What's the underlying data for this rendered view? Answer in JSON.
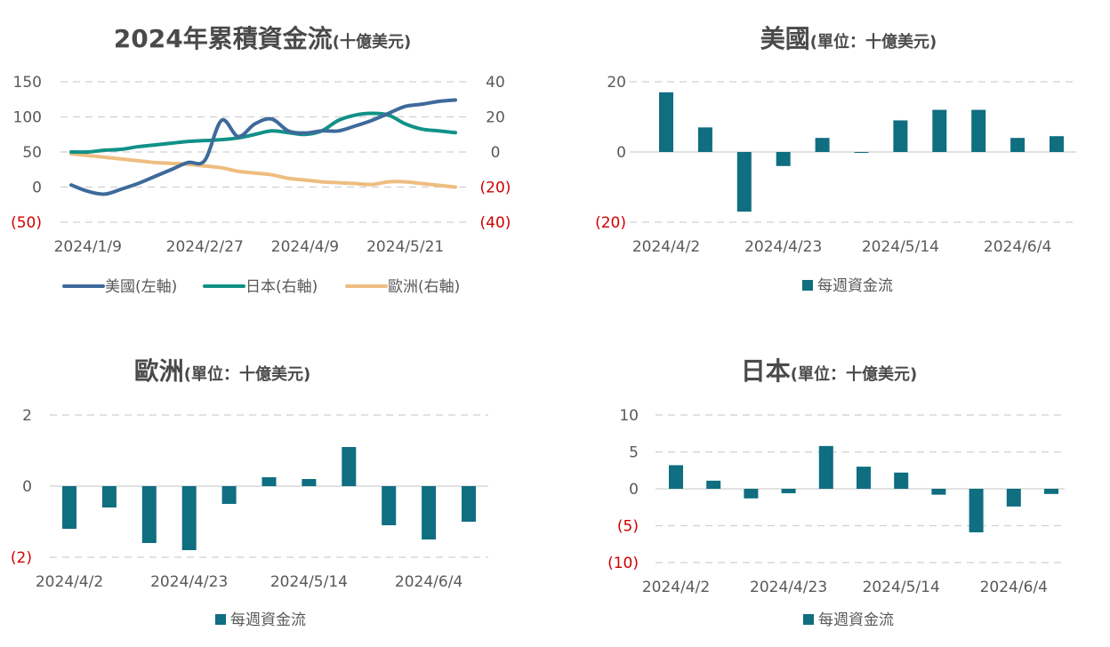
{
  "colors": {
    "us": "#3e6a9b",
    "jp": "#119187",
    "eu": "#eebd80",
    "bar": "#0f6e80",
    "neg": "#d00000",
    "grid": "#d0d0d0",
    "text": "#595959"
  },
  "charts": {
    "cumulative": {
      "title_main": "2024年累積資金流",
      "title_sub": "(十億美元)",
      "left_ticks": [
        "150",
        "100",
        "50",
        "0",
        "(50)"
      ],
      "right_ticks": [
        "40",
        "20",
        "0",
        "(20)",
        "(40)"
      ],
      "x_ticks": [
        "2024/1/9",
        "2024/2/27",
        "2024/4/9",
        "2024/5/21"
      ],
      "legend": [
        "美國(左軸)",
        "日本(右軸)",
        "歐洲(右軸)"
      ]
    },
    "us": {
      "title_main": "美國",
      "title_sub": "(單位：十億美元)",
      "y_ticks": [
        "20",
        "0",
        "(20)"
      ],
      "x_ticks": [
        "2024/4/2",
        "2024/4/23",
        "2024/5/14",
        "2024/6/4"
      ],
      "legend": "每週資金流"
    },
    "eu": {
      "title_main": "歐洲",
      "title_sub": "(單位：十億美元)",
      "y_ticks": [
        "2",
        "0",
        "(2)"
      ],
      "x_ticks": [
        "2024/4/2",
        "2024/4/23",
        "2024/5/14",
        "2024/6/4"
      ],
      "legend": "每週資金流"
    },
    "jp": {
      "title_main": "日本",
      "title_sub": "(單位：十億美元)",
      "y_ticks": [
        "10",
        "5",
        "0",
        "(5)",
        "(10)"
      ],
      "x_ticks": [
        "2024/4/2",
        "2024/4/23",
        "2024/5/14",
        "2024/6/4"
      ],
      "legend": "每週資金流"
    }
  },
  "chart_data": [
    {
      "type": "line",
      "title": "2024年累積資金流(十億美元)",
      "x": [
        "2024/1/2",
        "2024/1/9",
        "2024/1/16",
        "2024/1/23",
        "2024/1/30",
        "2024/2/6",
        "2024/2/13",
        "2024/2/20",
        "2024/2/27",
        "2024/3/5",
        "2024/3/12",
        "2024/3/19",
        "2024/3/26",
        "2024/4/2",
        "2024/4/9",
        "2024/4/16",
        "2024/4/23",
        "2024/4/30",
        "2024/5/7",
        "2024/5/14",
        "2024/5/21",
        "2024/5/28",
        "2024/6/4",
        "2024/6/11"
      ],
      "x_ticks": [
        "2024/1/9",
        "2024/2/27",
        "2024/4/9",
        "2024/5/21"
      ],
      "ylim_left": [
        -50,
        150
      ],
      "ylim_right": [
        -40,
        40
      ],
      "grid": true,
      "legend_position": "bottom",
      "series": [
        {
          "name": "美國(左軸)",
          "axis": "left",
          "values": [
            3,
            -6,
            -10,
            -3,
            5,
            15,
            25,
            35,
            38,
            95,
            72,
            90,
            97,
            80,
            77,
            80,
            80,
            87,
            95,
            105,
            115,
            118,
            122,
            124
          ]
        },
        {
          "name": "日本(右軸)",
          "axis": "right",
          "values": [
            0,
            0,
            1,
            1.5,
            3,
            4,
            5,
            6,
            6.5,
            7,
            8,
            10,
            12,
            11,
            10,
            12,
            18,
            21,
            22,
            21,
            16,
            13,
            12,
            11
          ]
        },
        {
          "name": "歐洲(右軸)",
          "axis": "right",
          "values": [
            -1,
            -2,
            -3,
            -4,
            -5,
            -6,
            -6.5,
            -7,
            -8,
            -9,
            -11,
            -12,
            -13,
            -15,
            -16,
            -17,
            -17.5,
            -18,
            -18.5,
            -17,
            -17,
            -18,
            -19,
            -20
          ]
        }
      ]
    },
    {
      "type": "bar",
      "title": "美國(單位：十億美元)",
      "categories": [
        "2024/4/2",
        "2024/4/9",
        "2024/4/16",
        "2024/4/23",
        "2024/4/30",
        "2024/5/7",
        "2024/5/14",
        "2024/5/21",
        "2024/5/28",
        "2024/6/4",
        "2024/6/11"
      ],
      "series": [
        {
          "name": "每週資金流",
          "values": [
            17,
            7,
            -17,
            -4,
            4,
            0,
            9,
            12,
            12,
            4,
            4.5
          ]
        }
      ],
      "ylim": [
        -20,
        20
      ],
      "grid": true,
      "legend_position": "bottom"
    },
    {
      "type": "bar",
      "title": "歐洲(單位：十億美元)",
      "categories": [
        "2024/4/2",
        "2024/4/9",
        "2024/4/16",
        "2024/4/23",
        "2024/4/30",
        "2024/5/7",
        "2024/5/14",
        "2024/5/21",
        "2024/5/28",
        "2024/6/4",
        "2024/6/11"
      ],
      "series": [
        {
          "name": "每週資金流",
          "values": [
            -1.2,
            -0.6,
            -1.6,
            -1.8,
            -0.5,
            0.25,
            0.2,
            1.1,
            -1.1,
            -1.5,
            -1.0
          ]
        }
      ],
      "ylim": [
        -2,
        2
      ],
      "grid": true,
      "legend_position": "bottom"
    },
    {
      "type": "bar",
      "title": "日本(單位：十億美元)",
      "categories": [
        "2024/4/2",
        "2024/4/9",
        "2024/4/16",
        "2024/4/23",
        "2024/4/30",
        "2024/5/7",
        "2024/5/14",
        "2024/5/21",
        "2024/5/28",
        "2024/6/4",
        "2024/6/11"
      ],
      "series": [
        {
          "name": "每週資金流",
          "values": [
            3.2,
            1.1,
            -1.3,
            -0.6,
            5.8,
            3.0,
            2.2,
            -0.8,
            -5.9,
            -2.4,
            -0.7
          ]
        }
      ],
      "ylim": [
        -10,
        10
      ],
      "grid": true,
      "legend_position": "bottom"
    }
  ]
}
